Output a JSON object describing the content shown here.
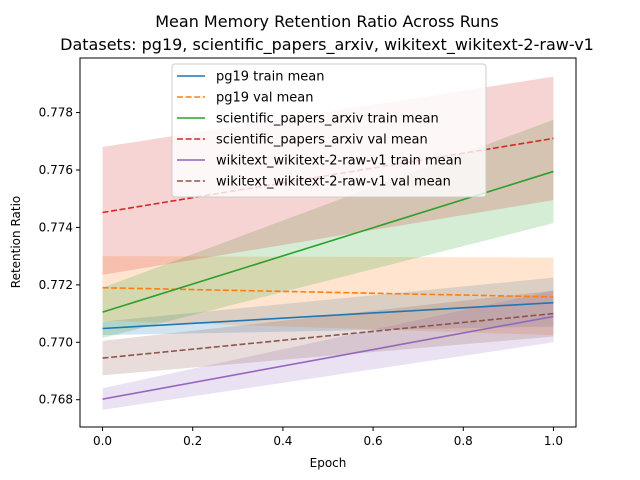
{
  "chart_data": {
    "type": "line",
    "title": "Mean Memory Retention Ratio Across Runs",
    "subtitle": "Datasets: pg19, scientific_papers_arxiv, wikitext_wikitext-2-raw-v1",
    "xlabel": "Epoch",
    "ylabel": "Retention Ratio",
    "xlim": [
      -0.05,
      1.05
    ],
    "ylim": [
      0.76705,
      0.7799
    ],
    "x_ticks": [
      0.0,
      0.2,
      0.4,
      0.6,
      0.8,
      1.0
    ],
    "x_tick_labels": [
      "0.0",
      "0.2",
      "0.4",
      "0.6",
      "0.8",
      "1.0"
    ],
    "y_ticks": [
      0.768,
      0.77,
      0.772,
      0.774,
      0.776,
      0.778
    ],
    "y_tick_labels": [
      "0.768",
      "0.770",
      "0.772",
      "0.774",
      "0.776",
      "0.778"
    ],
    "grid": false,
    "legend_position": "top-center",
    "x": [
      0.0,
      1.0
    ],
    "series": [
      {
        "name": "pg19 train mean",
        "color": "#1f77b4",
        "dash": "solid",
        "values": [
          0.77048,
          0.77138
        ],
        "band_lower": [
          0.77025,
          0.77055
        ],
        "band_upper": [
          0.77072,
          0.77225
        ]
      },
      {
        "name": "pg19 val mean",
        "color": "#ff7f0e",
        "dash": "dashed",
        "values": [
          0.7719,
          0.77158
        ],
        "band_lower": [
          0.77075,
          0.77025
        ],
        "band_upper": [
          0.773,
          0.77295
        ]
      },
      {
        "name": "scientific_papers_arxiv train mean",
        "color": "#2ca02c",
        "dash": "solid",
        "values": [
          0.77105,
          0.77595
        ],
        "band_lower": [
          0.77015,
          0.77415
        ],
        "band_upper": [
          0.7719,
          0.77775
        ]
      },
      {
        "name": "scientific_papers_arxiv val mean",
        "color": "#d62728",
        "dash": "dashed",
        "values": [
          0.77452,
          0.7771
        ],
        "band_lower": [
          0.77235,
          0.77495
        ],
        "band_upper": [
          0.7768,
          0.77925
        ]
      },
      {
        "name": "wikitext_wikitext-2-raw-v1 train mean",
        "color": "#9467bd",
        "dash": "solid",
        "values": [
          0.76802,
          0.7709
        ],
        "band_lower": [
          0.76765,
          0.77
        ],
        "band_upper": [
          0.7684,
          0.7718
        ]
      },
      {
        "name": "wikitext_wikitext-2-raw-v1 val mean",
        "color": "#8c564b",
        "dash": "dashed",
        "values": [
          0.76945,
          0.771
        ],
        "band_lower": [
          0.76885,
          0.7702
        ],
        "band_upper": [
          0.77005,
          0.7718
        ]
      }
    ]
  }
}
